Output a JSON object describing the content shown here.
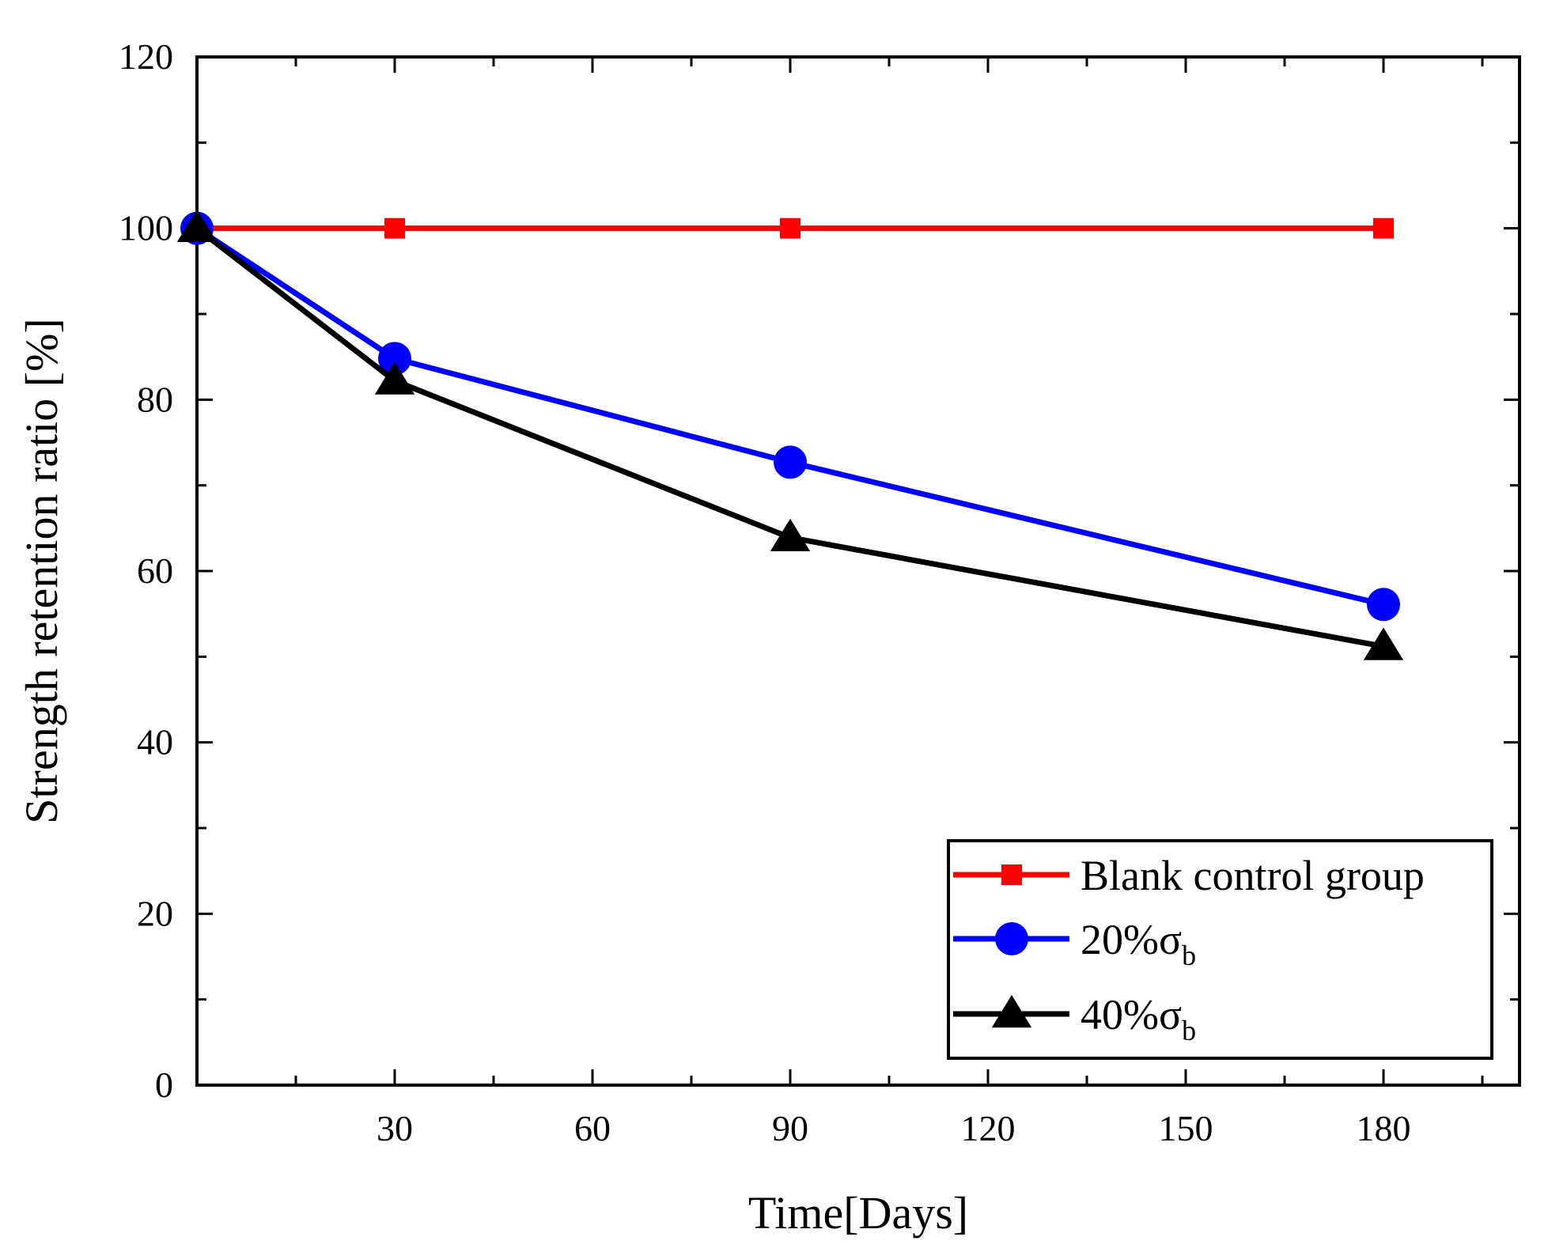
{
  "chart_data": {
    "type": "line",
    "title": "",
    "xlabel": "Time[Days]",
    "ylabel": "Strength retention ratio [%]",
    "xlim": [
      0,
      200
    ],
    "ylim": [
      0,
      120
    ],
    "xticks": [
      30,
      60,
      90,
      120,
      150,
      180
    ],
    "yticks": [
      0,
      20,
      40,
      60,
      80,
      100,
      120
    ],
    "x": [
      0,
      30,
      90,
      180
    ],
    "series": [
      {
        "name": "Blank control group",
        "marker": "square",
        "color": "#ff0000",
        "x": [
          0,
          30,
          90,
          180
        ],
        "values": [
          100,
          100,
          100,
          100
        ]
      },
      {
        "name": "20%σ",
        "name_sub": "b",
        "marker": "circle",
        "color": "#0000ff",
        "x": [
          0,
          30,
          90,
          180
        ],
        "values": [
          100,
          84.8,
          72.7,
          56.1
        ]
      },
      {
        "name": "40%σ",
        "name_sub": "b",
        "marker": "triangle",
        "color": "#000000",
        "x": [
          0,
          30,
          90,
          180
        ],
        "values": [
          100,
          82.2,
          63.9,
          51.2
        ]
      }
    ],
    "legend_position": "bottom-right",
    "grid": false
  }
}
